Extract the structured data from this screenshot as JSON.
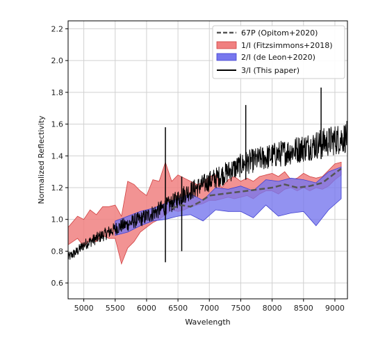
{
  "chart_data": {
    "type": "line",
    "title": "",
    "xlabel": "Wavelength",
    "ylabel": "Normalized Reflectivity",
    "xlim": [
      4750,
      9200
    ],
    "ylim": [
      0.5,
      2.25
    ],
    "xticks": [
      5000,
      5500,
      6000,
      6500,
      7000,
      7500,
      8000,
      8500,
      9000
    ],
    "yticks": [
      0.6,
      0.8,
      1.0,
      1.2,
      1.4,
      1.6,
      1.8,
      2.0,
      2.2
    ],
    "xtick_labels": [
      "5000",
      "5500",
      "6000",
      "6500",
      "7000",
      "7500",
      "8000",
      "8500",
      "9000"
    ],
    "ytick_labels": [
      "0.6",
      "0.8",
      "1.0",
      "1.2",
      "1.4",
      "1.6",
      "1.8",
      "2.0",
      "2.2"
    ],
    "grid": true,
    "legend_position": "top-right",
    "colors": {
      "opitom": "#555555",
      "fitz_fill": "#f08080",
      "fitz_edge": "#d04040",
      "deleon_fill": "#7777ee",
      "deleon_edge": "#4040d0",
      "this_paper": "#000000"
    },
    "series": [
      {
        "name": "67P (Opitom+2020)",
        "kind": "dashed-line",
        "x": [
          6400,
          6550,
          6700,
          6850,
          7000,
          7200,
          7400,
          7600,
          7800,
          8000,
          8200,
          8400,
          8600,
          8800,
          9000,
          9100
        ],
        "y": [
          1.07,
          1.09,
          1.08,
          1.11,
          1.15,
          1.16,
          1.17,
          1.18,
          1.19,
          1.2,
          1.22,
          1.2,
          1.21,
          1.23,
          1.29,
          1.32
        ]
      },
      {
        "name": "1/I (Fitzsimmons+2018)",
        "kind": "band",
        "x": [
          4750,
          4900,
          5000,
          5100,
          5200,
          5300,
          5400,
          5500,
          5600,
          5700,
          5800,
          5900,
          6000,
          6100,
          6200,
          6300,
          6400,
          6500,
          6600,
          6700,
          6800,
          6900,
          7000,
          7100,
          7200,
          7300,
          7400,
          7500,
          7600,
          7700,
          7800,
          7900,
          8000,
          8100,
          8200,
          8300,
          8400,
          8500,
          8600,
          8700,
          8800,
          8900,
          9000,
          9100
        ],
        "lower": [
          0.84,
          0.88,
          0.83,
          0.87,
          0.86,
          0.9,
          0.88,
          0.88,
          0.72,
          0.82,
          0.86,
          0.92,
          0.95,
          0.98,
          1.0,
          1.03,
          1.06,
          1.05,
          1.06,
          1.08,
          1.09,
          1.1,
          1.12,
          1.12,
          1.13,
          1.14,
          1.13,
          1.14,
          1.15,
          1.13,
          1.16,
          1.18,
          1.18,
          1.16,
          1.19,
          1.2,
          1.18,
          1.2,
          1.18,
          1.2,
          1.19,
          1.21,
          1.25,
          1.28
        ],
        "upper": [
          0.95,
          1.02,
          1.0,
          1.06,
          1.03,
          1.08,
          1.08,
          1.09,
          1.02,
          1.24,
          1.22,
          1.18,
          1.15,
          1.25,
          1.24,
          1.36,
          1.24,
          1.28,
          1.26,
          1.24,
          1.22,
          1.23,
          1.27,
          1.28,
          1.2,
          1.25,
          1.27,
          1.24,
          1.26,
          1.24,
          1.27,
          1.28,
          1.29,
          1.27,
          1.3,
          1.25,
          1.26,
          1.29,
          1.27,
          1.26,
          1.27,
          1.31,
          1.35,
          1.36
        ]
      },
      {
        "name": "2/I (de Leon+2020)",
        "kind": "band",
        "x": [
          5500,
          5700,
          5900,
          6100,
          6300,
          6500,
          6700,
          6900,
          7100,
          7300,
          7500,
          7700,
          7900,
          8100,
          8300,
          8500,
          8700,
          8900,
          9100
        ],
        "lower": [
          0.9,
          0.92,
          0.96,
          0.99,
          1.0,
          1.02,
          1.03,
          0.99,
          1.06,
          1.05,
          1.05,
          1.01,
          1.09,
          1.02,
          1.04,
          1.05,
          0.96,
          1.06,
          1.13
        ],
        "upper": [
          0.99,
          1.02,
          1.05,
          1.07,
          1.1,
          1.13,
          1.16,
          1.12,
          1.2,
          1.19,
          1.21,
          1.18,
          1.25,
          1.24,
          1.26,
          1.25,
          1.23,
          1.3,
          1.33
        ]
      },
      {
        "name": "3/I (This paper)",
        "kind": "noisy-line",
        "x": [
          4750,
          4900,
          5000,
          5100,
          5200,
          5300,
          5400,
          5500,
          5600,
          5700,
          5800,
          5900,
          6000,
          6100,
          6200,
          6300,
          6400,
          6500,
          6600,
          6700,
          6800,
          6900,
          7000,
          7100,
          7200,
          7300,
          7400,
          7500,
          7600,
          7700,
          7800,
          7900,
          8000,
          8100,
          8200,
          8300,
          8400,
          8500,
          8600,
          8700,
          8800,
          8900,
          9000,
          9100,
          9200
        ],
        "y": [
          0.76,
          0.8,
          0.84,
          0.86,
          0.88,
          0.9,
          0.92,
          0.94,
          0.96,
          0.97,
          0.99,
          1.0,
          1.02,
          1.04,
          1.06,
          1.08,
          1.1,
          1.13,
          1.16,
          1.18,
          1.2,
          1.22,
          1.24,
          1.26,
          1.28,
          1.3,
          1.32,
          1.34,
          1.36,
          1.37,
          1.38,
          1.39,
          1.4,
          1.41,
          1.42,
          1.43,
          1.44,
          1.45,
          1.46,
          1.47,
          1.48,
          1.49,
          1.5,
          1.51,
          1.52
        ],
        "noise": 0.05,
        "spikes": [
          {
            "x": 6300,
            "low": 0.73,
            "high": 1.58
          },
          {
            "x": 6560,
            "low": 0.8,
            "high": 1.27
          },
          {
            "x": 7580,
            "low": 1.25,
            "high": 1.72
          },
          {
            "x": 8780,
            "low": 1.38,
            "high": 1.83
          }
        ]
      }
    ]
  }
}
